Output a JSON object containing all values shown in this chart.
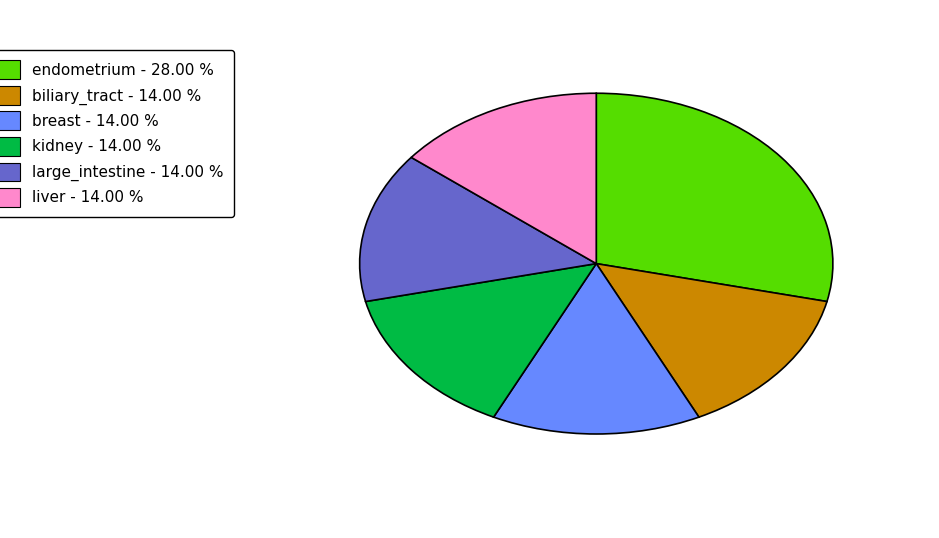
{
  "labels": [
    "endometrium",
    "biliary_tract",
    "breast",
    "kidney",
    "large_intestine",
    "liver"
  ],
  "values": [
    28,
    14,
    14,
    14,
    14,
    14
  ],
  "colors": [
    "#55dd00",
    "#cc8800",
    "#6688ff",
    "#00bb44",
    "#6666cc",
    "#ff88cc"
  ],
  "legend_labels": [
    "endometrium - 28.00 %",
    "biliary_tract - 14.00 %",
    "breast - 14.00 %",
    "kidney - 14.00 %",
    "large_intestine - 14.00 %",
    "liver - 14.00 %"
  ],
  "legend_colors": [
    "#55dd00",
    "#cc8800",
    "#6688ff",
    "#00bb44",
    "#6666cc",
    "#ff88cc"
  ],
  "startangle": 90,
  "counterclock": false,
  "aspect_ratio": 0.72,
  "figsize": [
    9.39,
    5.38
  ],
  "dpi": 100
}
